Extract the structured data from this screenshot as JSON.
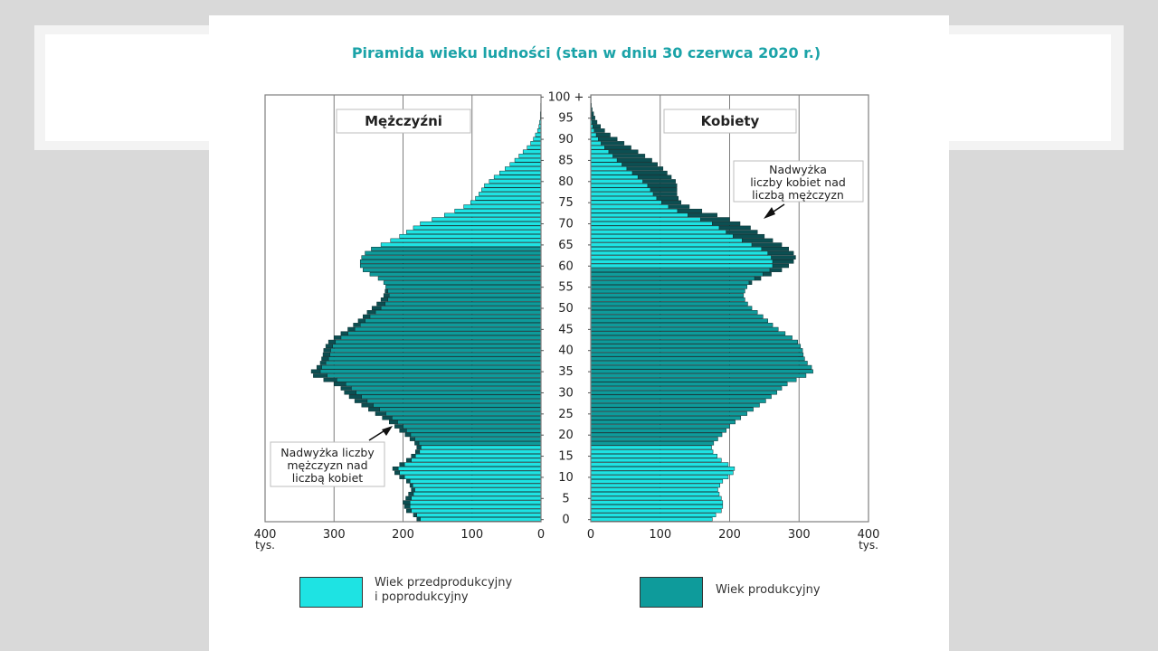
{
  "title": "Piramida wieku ludności (stan w dniu 30 czerwca 2020 r.)",
  "chart_data": {
    "type": "bar",
    "orientation": "horizontal-pyramid",
    "title": "Piramida wieku ludności (stan w dniu 30 czerwca 2020 r.)",
    "male_label": "Mężczyźni",
    "female_label": "Kobiety",
    "axis_unit": "tys.",
    "x_ticks_male": [
      "400",
      "300",
      "200",
      "100",
      "0"
    ],
    "x_ticks_female": [
      "0",
      "100",
      "200",
      "300",
      "400"
    ],
    "xlim": [
      0,
      400
    ],
    "age_ticks": [
      "100 +",
      "95",
      "90",
      "85",
      "80",
      "75",
      "70",
      "65",
      "60",
      "55",
      "50",
      "45",
      "40",
      "35",
      "30",
      "25",
      "20",
      "15",
      "10",
      "5",
      "0"
    ],
    "ages": [
      0,
      1,
      2,
      3,
      4,
      5,
      6,
      7,
      8,
      9,
      10,
      11,
      12,
      13,
      14,
      15,
      16,
      17,
      18,
      19,
      20,
      21,
      22,
      23,
      24,
      25,
      26,
      27,
      28,
      29,
      30,
      31,
      32,
      33,
      34,
      35,
      36,
      37,
      38,
      39,
      40,
      41,
      42,
      43,
      44,
      45,
      46,
      47,
      48,
      49,
      50,
      51,
      52,
      53,
      54,
      55,
      56,
      57,
      58,
      59,
      60,
      61,
      62,
      63,
      64,
      65,
      66,
      67,
      68,
      69,
      70,
      71,
      72,
      73,
      74,
      75,
      76,
      77,
      78,
      79,
      80,
      81,
      82,
      83,
      84,
      85,
      86,
      87,
      88,
      89,
      90,
      91,
      92,
      93,
      94,
      95,
      96,
      97,
      98,
      99,
      100
    ],
    "male_values": [
      180,
      185,
      195,
      198,
      200,
      196,
      192,
      188,
      190,
      195,
      205,
      212,
      215,
      205,
      195,
      188,
      182,
      180,
      183,
      190,
      197,
      205,
      212,
      220,
      230,
      240,
      250,
      260,
      270,
      278,
      285,
      290,
      300,
      315,
      330,
      333,
      325,
      320,
      318,
      316,
      315,
      312,
      308,
      300,
      290,
      280,
      272,
      265,
      258,
      252,
      245,
      238,
      232,
      228,
      226,
      225,
      228,
      236,
      248,
      258,
      262,
      262,
      260,
      255,
      246,
      232,
      218,
      205,
      195,
      185,
      175,
      158,
      140,
      125,
      112,
      102,
      95,
      90,
      86,
      82,
      75,
      68,
      60,
      52,
      45,
      38,
      32,
      26,
      20,
      15,
      11,
      8,
      5,
      3,
      2,
      1,
      1,
      0.5,
      0.5,
      0.2,
      0.2
    ],
    "female_values": [
      175,
      180,
      188,
      190,
      190,
      188,
      185,
      183,
      186,
      190,
      198,
      205,
      207,
      198,
      188,
      182,
      176,
      174,
      177,
      183,
      189,
      195,
      200,
      208,
      216,
      225,
      234,
      243,
      252,
      260,
      268,
      275,
      283,
      296,
      310,
      320,
      318,
      312,
      308,
      306,
      305,
      302,
      298,
      290,
      280,
      270,
      262,
      255,
      248,
      240,
      232,
      226,
      222,
      220,
      222,
      225,
      232,
      245,
      260,
      275,
      285,
      292,
      295,
      292,
      285,
      275,
      262,
      250,
      240,
      230,
      215,
      200,
      182,
      160,
      142,
      130,
      126,
      124,
      124,
      124,
      122,
      116,
      110,
      104,
      96,
      88,
      78,
      68,
      58,
      48,
      38,
      28,
      20,
      14,
      9,
      6,
      4,
      2,
      1,
      0.5,
      0.5
    ],
    "working_age_range_male": [
      18,
      64
    ],
    "working_age_range_female": [
      18,
      59
    ],
    "male_surplus_ages": [
      0,
      19
    ],
    "female_surplus_ages": [
      69,
      100
    ],
    "colors": {
      "pre_post": "#1ee3e3",
      "working": "#0e9b9b",
      "surplus": "#0c4f52",
      "frame": "#7f7f7f"
    },
    "annotations": {
      "female_surplus": [
        "Nadwyżka",
        "liczby kobiet nad",
        "liczbą mężczyzn"
      ],
      "male_surplus": [
        "Nadwyżka liczby",
        "mężczyzn nad",
        "liczbą kobiet"
      ]
    },
    "legend": {
      "pre_post_lines": [
        "Wiek przedprodukcyjny",
        "i poprodukcyjny"
      ],
      "working": "Wiek produkcyjny"
    }
  }
}
